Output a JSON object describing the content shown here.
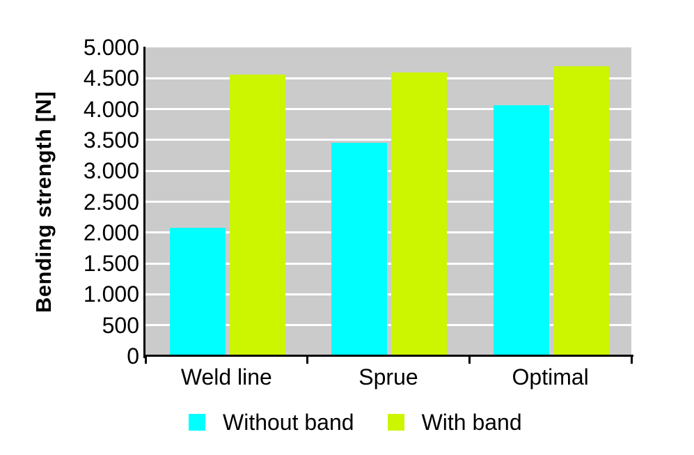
{
  "page": {
    "background": "#FFFFFF"
  },
  "chart_data": {
    "type": "bar",
    "title": "",
    "ylabel": "Bending strength [N]",
    "xlabel": "",
    "categories": [
      "Weld line",
      "Sprue",
      "Optimal"
    ],
    "series": [
      {
        "name": "Without band",
        "color": "#00FFFF",
        "values": [
          2080,
          3450,
          4060
        ]
      },
      {
        "name": "With band",
        "color": "#CCF500",
        "values": [
          4560,
          4590,
          4700
        ]
      }
    ],
    "ylim": [
      0,
      5000
    ],
    "y_tick_step": 500,
    "y_ticks": [
      {
        "value": 0,
        "label": "0"
      },
      {
        "value": 500,
        "label": "500"
      },
      {
        "value": 1000,
        "label": "1.000"
      },
      {
        "value": 1500,
        "label": "1.500"
      },
      {
        "value": 2000,
        "label": "2.000"
      },
      {
        "value": 2500,
        "label": "2.500"
      },
      {
        "value": 3000,
        "label": "3.000"
      },
      {
        "value": 3500,
        "label": "3.500"
      },
      {
        "value": 4000,
        "label": "4.000"
      },
      {
        "value": 4500,
        "label": "4.500"
      },
      {
        "value": 5000,
        "label": "5.000"
      }
    ],
    "grid": true,
    "legend_position": "bottom",
    "colors": {
      "plot_background": "#CBCBCB",
      "gridline": "#FFFFFF",
      "axis": "#000000",
      "text": "#000000"
    }
  }
}
